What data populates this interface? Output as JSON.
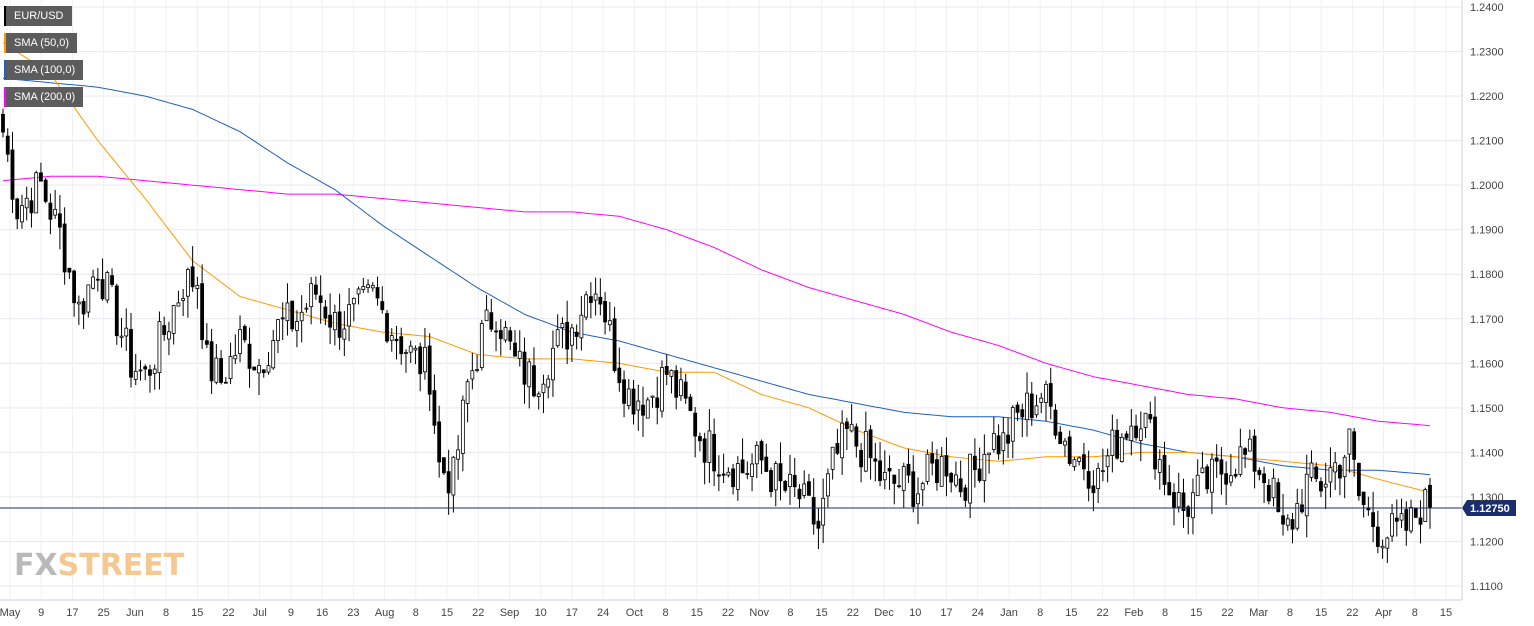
{
  "legend": {
    "items": [
      {
        "label": "EUR/USD",
        "color": "#000000"
      },
      {
        "label": "SMA (50,0)",
        "color": "#ff9900"
      },
      {
        "label": "SMA (100,0)",
        "color": "#1f5fbf"
      },
      {
        "label": "SMA (200,0)",
        "color": "#ff00ff"
      }
    ]
  },
  "watermark": {
    "part1": "FX",
    "part2": "STREET"
  },
  "chart_data": {
    "type": "candlestick",
    "symbol": "EUR/USD",
    "ylim": [
      1.105,
      1.241
    ],
    "yticks": [
      "1.1100",
      "1.1200",
      "1.1300",
      "1.1400",
      "1.1500",
      "1.1600",
      "1.1700",
      "1.1800",
      "1.1900",
      "1.2000",
      "1.2100",
      "1.2200",
      "1.2300",
      "1.2400"
    ],
    "ytick_values": [
      1.11,
      1.12,
      1.13,
      1.14,
      1.15,
      1.16,
      1.17,
      1.18,
      1.19,
      1.2,
      1.21,
      1.22,
      1.23,
      1.24
    ],
    "xticks": [
      "May",
      "9",
      "17",
      "25",
      "Jun",
      "8",
      "15",
      "22",
      "Jul",
      "9",
      "16",
      "23",
      "Aug",
      "8",
      "15",
      "22",
      "Sep",
      "10",
      "17",
      "24",
      "Oct",
      "8",
      "15",
      "22",
      "Nov",
      "8",
      "15",
      "22",
      "Dec",
      "10",
      "17",
      "24",
      "Jan",
      "8",
      "15",
      "22",
      "Feb",
      "8",
      "15",
      "22",
      "Mar",
      "8",
      "15",
      "22",
      "Apr",
      "8",
      "15"
    ],
    "last_price": 1.1275,
    "last_price_label": "1.12750",
    "anchors_close": [
      [
        0,
        1.212
      ],
      [
        3,
        1.195
      ],
      [
        8,
        1.2
      ],
      [
        12,
        1.189
      ],
      [
        16,
        1.172
      ],
      [
        20,
        1.182
      ],
      [
        24,
        1.17
      ],
      [
        27,
        1.16
      ],
      [
        30,
        1.157
      ],
      [
        34,
        1.167
      ],
      [
        38,
        1.178
      ],
      [
        41,
        1.179
      ],
      [
        43,
        1.16
      ],
      [
        46,
        1.156
      ],
      [
        50,
        1.165
      ],
      [
        54,
        1.16
      ],
      [
        58,
        1.168
      ],
      [
        62,
        1.17
      ],
      [
        66,
        1.176
      ],
      [
        70,
        1.169
      ],
      [
        74,
        1.171
      ],
      [
        78,
        1.175
      ],
      [
        82,
        1.168
      ],
      [
        86,
        1.162
      ],
      [
        90,
        1.158
      ],
      [
        92,
        1.137
      ],
      [
        95,
        1.134
      ],
      [
        98,
        1.155
      ],
      [
        101,
        1.166
      ],
      [
        104,
        1.172
      ],
      [
        108,
        1.16
      ],
      [
        112,
        1.156
      ],
      [
        116,
        1.163
      ],
      [
        120,
        1.168
      ],
      [
        124,
        1.178
      ],
      [
        126,
        1.176
      ],
      [
        129,
        1.162
      ],
      [
        132,
        1.153
      ],
      [
        136,
        1.152
      ],
      [
        140,
        1.158
      ],
      [
        144,
        1.15
      ],
      [
        148,
        1.142
      ],
      [
        152,
        1.138
      ],
      [
        156,
        1.136
      ],
      [
        160,
        1.138
      ],
      [
        164,
        1.132
      ],
      [
        168,
        1.13
      ],
      [
        172,
        1.123
      ],
      [
        175,
        1.137
      ],
      [
        178,
        1.144
      ],
      [
        182,
        1.14
      ],
      [
        186,
        1.133
      ],
      [
        190,
        1.133
      ],
      [
        193,
        1.132
      ],
      [
        196,
        1.136
      ],
      [
        199,
        1.138
      ],
      [
        202,
        1.133
      ],
      [
        205,
        1.136
      ],
      [
        208,
        1.143
      ],
      [
        211,
        1.142
      ],
      [
        214,
        1.148
      ],
      [
        216,
        1.15
      ],
      [
        219,
        1.153
      ],
      [
        222,
        1.148
      ],
      [
        225,
        1.14
      ],
      [
        228,
        1.138
      ],
      [
        231,
        1.134
      ],
      [
        234,
        1.141
      ],
      [
        237,
        1.146
      ],
      [
        240,
        1.149
      ],
      [
        242,
        1.144
      ],
      [
        246,
        1.132
      ],
      [
        249,
        1.127
      ],
      [
        252,
        1.131
      ],
      [
        255,
        1.134
      ],
      [
        258,
        1.137
      ],
      [
        261,
        1.139
      ],
      [
        264,
        1.138
      ],
      [
        266,
        1.135
      ],
      [
        268,
        1.13
      ],
      [
        270,
        1.121
      ],
      [
        272,
        1.125
      ],
      [
        275,
        1.133
      ],
      [
        278,
        1.133
      ],
      [
        280,
        1.136
      ],
      [
        282,
        1.138
      ],
      [
        284,
        1.142
      ],
      [
        286,
        1.13
      ],
      [
        288,
        1.126
      ],
      [
        290,
        1.123
      ],
      [
        292,
        1.122
      ],
      [
        295,
        1.122
      ],
      [
        297,
        1.124
      ],
      [
        299,
        1.128
      ],
      [
        301,
        1.1275
      ]
    ],
    "sma50_anchors": [
      [
        0,
        1.232
      ],
      [
        10,
        1.225
      ],
      [
        20,
        1.21
      ],
      [
        30,
        1.197
      ],
      [
        40,
        1.183
      ],
      [
        50,
        1.175
      ],
      [
        60,
        1.172
      ],
      [
        70,
        1.169
      ],
      [
        80,
        1.167
      ],
      [
        90,
        1.166
      ],
      [
        100,
        1.162
      ],
      [
        110,
        1.161
      ],
      [
        120,
        1.161
      ],
      [
        130,
        1.16
      ],
      [
        140,
        1.158
      ],
      [
        150,
        1.158
      ],
      [
        160,
        1.153
      ],
      [
        170,
        1.15
      ],
      [
        180,
        1.145
      ],
      [
        190,
        1.141
      ],
      [
        200,
        1.139
      ],
      [
        210,
        1.138
      ],
      [
        220,
        1.139
      ],
      [
        230,
        1.139
      ],
      [
        240,
        1.14
      ],
      [
        250,
        1.14
      ],
      [
        260,
        1.139
      ],
      [
        270,
        1.138
      ],
      [
        280,
        1.137
      ],
      [
        290,
        1.134
      ],
      [
        301,
        1.131
      ]
    ],
    "sma100_anchors": [
      [
        0,
        1.224
      ],
      [
        10,
        1.223
      ],
      [
        20,
        1.222
      ],
      [
        30,
        1.22
      ],
      [
        40,
        1.217
      ],
      [
        50,
        1.212
      ],
      [
        60,
        1.205
      ],
      [
        70,
        1.199
      ],
      [
        80,
        1.191
      ],
      [
        90,
        1.184
      ],
      [
        100,
        1.177
      ],
      [
        110,
        1.171
      ],
      [
        120,
        1.167
      ],
      [
        130,
        1.165
      ],
      [
        140,
        1.162
      ],
      [
        150,
        1.159
      ],
      [
        160,
        1.156
      ],
      [
        170,
        1.153
      ],
      [
        180,
        1.151
      ],
      [
        190,
        1.149
      ],
      [
        200,
        1.148
      ],
      [
        210,
        1.148
      ],
      [
        220,
        1.147
      ],
      [
        230,
        1.145
      ],
      [
        240,
        1.142
      ],
      [
        250,
        1.14
      ],
      [
        260,
        1.139
      ],
      [
        270,
        1.137
      ],
      [
        280,
        1.136
      ],
      [
        290,
        1.136
      ],
      [
        301,
        1.135
      ]
    ],
    "sma200_anchors": [
      [
        0,
        1.201
      ],
      [
        10,
        1.202
      ],
      [
        20,
        1.202
      ],
      [
        30,
        1.201
      ],
      [
        40,
        1.2
      ],
      [
        50,
        1.199
      ],
      [
        60,
        1.198
      ],
      [
        70,
        1.198
      ],
      [
        80,
        1.197
      ],
      [
        90,
        1.196
      ],
      [
        100,
        1.195
      ],
      [
        110,
        1.194
      ],
      [
        120,
        1.194
      ],
      [
        130,
        1.193
      ],
      [
        140,
        1.19
      ],
      [
        150,
        1.186
      ],
      [
        160,
        1.181
      ],
      [
        170,
        1.177
      ],
      [
        180,
        1.174
      ],
      [
        190,
        1.171
      ],
      [
        200,
        1.167
      ],
      [
        210,
        1.164
      ],
      [
        220,
        1.16
      ],
      [
        230,
        1.157
      ],
      [
        240,
        1.155
      ],
      [
        250,
        1.153
      ],
      [
        260,
        1.152
      ],
      [
        270,
        1.15
      ],
      [
        280,
        1.149
      ],
      [
        290,
        1.147
      ],
      [
        301,
        1.146
      ]
    ]
  }
}
